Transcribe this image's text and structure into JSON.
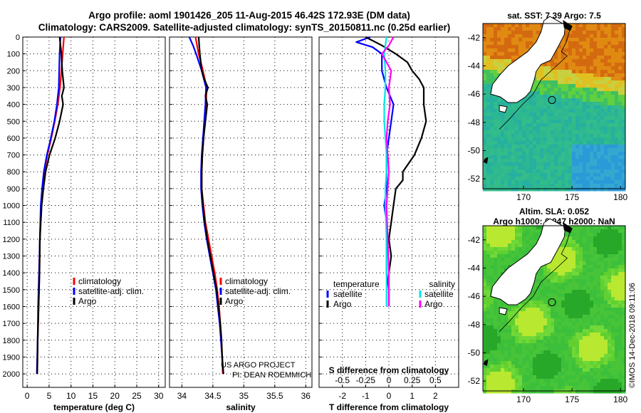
{
  "header": {
    "title_line1": "Argo profile: aoml 1901426_205 11-Aug-2015 46.42S 172.93E (DM data)",
    "title_line2": "Climatology: CARS2009. Satellite-adjusted climatology: synTS_20150811.nc (0.25d earlier)"
  },
  "depth_ticks": [
    0,
    100,
    200,
    300,
    400,
    500,
    600,
    700,
    800,
    900,
    1000,
    1100,
    1200,
    1300,
    1400,
    1500,
    1600,
    1700,
    1800,
    1900,
    2000
  ],
  "depth_tick_labels": [
    "0",
    "100",
    "200",
    "300",
    "400",
    "500",
    "600",
    "700",
    "800",
    "900",
    "1000",
    "1100",
    "1200",
    "1300",
    "1400",
    "1500",
    "1600",
    "1700",
    "1800",
    "1900",
    "2000"
  ],
  "colors": {
    "climatology": "#ff0000",
    "satellite": "#0000ff",
    "argo": "#000000",
    "sat_salinity": "#00e5e5",
    "argo_salinity": "#ff00ff"
  },
  "chart_data": [
    {
      "type": "line",
      "xlabel": "temperature (deg C)",
      "xlim": [
        -1,
        31.5
      ],
      "ylim": [
        2080,
        0
      ],
      "xticks": [
        0,
        5,
        10,
        15,
        20,
        25,
        30
      ],
      "xtick_labels": [
        "0",
        "5",
        "10",
        "15",
        "20",
        "25",
        "30"
      ],
      "legend": [
        "climatology",
        "satellite-adj. clim.",
        "Argo"
      ],
      "series": [
        {
          "name": "climatology",
          "depth": [
            0,
            100,
            200,
            300,
            400,
            500,
            600,
            700,
            800,
            900,
            1000,
            1200,
            1400,
            1600,
            1800,
            2000
          ],
          "values": [
            8.4,
            8.1,
            7.8,
            7.5,
            7.0,
            6.3,
            5.5,
            4.6,
            3.9,
            3.5,
            3.2,
            2.9,
            2.8,
            2.6,
            2.4,
            2.3
          ]
        },
        {
          "name": "satellite-adj. clim.",
          "depth": [
            0,
            100,
            200,
            300,
            400,
            500,
            600,
            700,
            800,
            900,
            1000,
            1200,
            1400,
            1600,
            1800,
            2000
          ],
          "values": [
            7.6,
            7.4,
            7.3,
            7.2,
            6.8,
            6.2,
            5.4,
            4.5,
            3.8,
            3.4,
            3.1,
            2.9,
            2.7,
            2.5,
            2.4,
            2.2
          ]
        },
        {
          "name": "Argo",
          "depth": [
            0,
            100,
            200,
            250,
            300,
            350,
            400,
            500,
            600,
            700,
            800,
            900,
            1000,
            1200,
            1400,
            1600,
            1800,
            2000
          ],
          "values": [
            7.4,
            7.8,
            8.0,
            8.2,
            8.4,
            7.9,
            8.2,
            7.4,
            6.4,
            5.1,
            4.2,
            3.7,
            3.3,
            2.9,
            2.8,
            2.6,
            2.4,
            2.3
          ]
        }
      ]
    },
    {
      "type": "line",
      "xlabel": "salinity",
      "xlim": [
        33.8,
        36.1
      ],
      "ylim": [
        2080,
        0
      ],
      "xticks": [
        34,
        34.5,
        35,
        35.5,
        36
      ],
      "xtick_labels": [
        "34",
        "34.5",
        "35",
        "35.5",
        "36"
      ],
      "legend": [
        "climatology",
        "satellite-adj. clim.",
        "Argo"
      ],
      "annotation": [
        "US ARGO PROJECT",
        "PI: DEAN ROEMMICH"
      ],
      "series": [
        {
          "name": "climatology",
          "depth": [
            0,
            100,
            200,
            300,
            400,
            500,
            600,
            700,
            800,
            900,
            1000,
            1100,
            1200,
            1300,
            1400,
            1500,
            1600,
            1700,
            1800,
            1900,
            2000
          ],
          "values": [
            34.22,
            34.27,
            34.34,
            34.4,
            34.39,
            34.37,
            34.35,
            34.33,
            34.32,
            34.32,
            34.35,
            34.38,
            34.43,
            34.48,
            34.53,
            34.57,
            34.6,
            34.62,
            34.64,
            34.65,
            34.66
          ]
        },
        {
          "name": "satellite-adj. clim.",
          "depth": [
            0,
            50,
            100,
            200,
            300,
            400,
            500,
            600,
            700,
            800,
            900,
            1000,
            1100,
            1200,
            1300,
            1400,
            1500,
            1600,
            1700,
            1800,
            1900,
            2000
          ],
          "values": [
            34.12,
            34.18,
            34.23,
            34.32,
            34.39,
            34.38,
            34.36,
            34.34,
            34.32,
            34.31,
            34.31,
            34.33,
            34.36,
            34.4,
            34.45,
            34.5,
            34.55,
            34.58,
            34.61,
            34.63,
            34.65,
            34.67
          ]
        },
        {
          "name": "Argo",
          "depth": [
            0,
            100,
            200,
            250,
            300,
            350,
            400,
            500,
            600,
            700,
            800,
            900,
            1000,
            1100,
            1200,
            1300,
            1400,
            1500,
            1600,
            1700,
            1800,
            1900,
            2000
          ],
          "values": [
            34.27,
            34.29,
            34.32,
            34.36,
            34.42,
            34.38,
            34.41,
            34.38,
            34.35,
            34.33,
            34.32,
            34.32,
            34.34,
            34.37,
            34.41,
            34.46,
            34.51,
            34.56,
            34.59,
            34.62,
            34.64,
            34.65,
            34.67
          ]
        }
      ]
    },
    {
      "type": "line",
      "xlabel": "T difference from climatology",
      "xlabel_top": "S difference from climatology",
      "xlim": [
        -3,
        3
      ],
      "ylim": [
        2080,
        0
      ],
      "xticks": [
        -2,
        -1,
        0,
        1,
        2
      ],
      "xtick_labels": [
        "-2",
        "-1",
        "0",
        "1",
        "2"
      ],
      "sticks": [
        -2.0,
        -1.0,
        0.0,
        1.0,
        2.0
      ],
      "stick_labels": [
        "-0.5",
        "-0.25",
        "0",
        "0.25",
        "0.5"
      ],
      "legend_left_title": "temperature",
      "legend_left": [
        "satellite",
        "Argo"
      ],
      "legend_right_title": "salinity",
      "legend_right": [
        "satellite",
        "Argo"
      ],
      "series": [
        {
          "name": "satellite",
          "depth": [
            0,
            30,
            60,
            100,
            200,
            300,
            400,
            500,
            600,
            700,
            800,
            900,
            1000,
            1100,
            1200,
            1300,
            1400,
            1500,
            1600
          ],
          "values": [
            -0.8,
            -1.4,
            -0.7,
            -0.3,
            -0.3,
            -0.1,
            0.2,
            0.1,
            0.0,
            -0.1,
            -0.1,
            -0.1,
            -0.2,
            -0.1,
            -0.1,
            -0.1,
            -0.1,
            0.0,
            0.0
          ]
        },
        {
          "name": "Argo",
          "depth": [
            0,
            50,
            100,
            150,
            200,
            250,
            300,
            400,
            500,
            600,
            700,
            800,
            850,
            900,
            1000,
            1100,
            1200,
            1300,
            1400,
            1500,
            1600
          ],
          "values": [
            -1.0,
            -0.3,
            0.3,
            0.8,
            1.0,
            1.3,
            1.5,
            1.5,
            1.6,
            1.4,
            1.1,
            0.6,
            0.6,
            0.3,
            0.2,
            0.1,
            0.0,
            0.1,
            0.0,
            0.0,
            0.0
          ]
        },
        {
          "name": "satellite",
          "depth": [
            0,
            100,
            200,
            300,
            400,
            500,
            600,
            700,
            800,
            900,
            1000,
            1200,
            1400,
            1600
          ],
          "values": [
            -0.1,
            -0.2,
            -0.15,
            -0.15,
            -0.2,
            -0.2,
            -0.15,
            -0.1,
            -0.1,
            -0.15,
            -0.15,
            -0.1,
            -0.1,
            -0.1
          ]
        },
        {
          "name": "Argo",
          "depth": [
            0,
            50,
            100,
            200,
            300,
            400,
            500,
            600,
            700,
            800,
            1000,
            1200,
            1400,
            1600
          ],
          "values": [
            0.2,
            0.0,
            -0.3,
            0.1,
            0.0,
            0.05,
            -0.05,
            -0.1,
            -0.05,
            0.0,
            -0.1,
            -0.05,
            0.0,
            0.0
          ]
        }
      ]
    }
  ],
  "sst_map": {
    "title": "sat. SST: 7.39 Argo: 7.5",
    "xticks": [
      170,
      175,
      180
    ],
    "yticks": [
      -42,
      -44,
      -46,
      -48,
      -50,
      -52
    ],
    "xtick_labels": [
      "170",
      "175",
      "180"
    ],
    "ytick_labels": [
      "-42",
      "-44",
      "-46",
      "-48",
      "-50",
      "-52"
    ],
    "float_position": [
      172.93,
      -46.42
    ]
  },
  "sla_map": {
    "title_line1": "Altim. SLA: 0.052",
    "title_line2": "Argo h1000: 0.047 h2000: NaN",
    "xticks": [
      170,
      175,
      180
    ],
    "yticks": [
      -42,
      -44,
      -46,
      -48,
      -50,
      -52
    ],
    "xtick_labels": [
      "170",
      "175",
      "180"
    ],
    "ytick_labels": [
      "-42",
      "-44",
      "-46",
      "-48",
      "-50",
      "-52"
    ],
    "float_position": [
      172.93,
      -46.42
    ]
  },
  "credit": "©IMOS 14-Dec-2018 09:11:06"
}
